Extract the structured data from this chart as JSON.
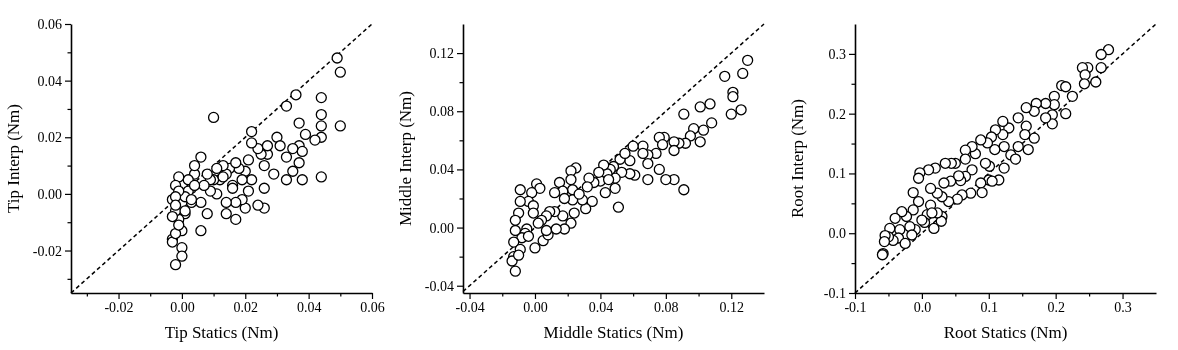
{
  "chart_data": [
    {
      "type": "scatter",
      "xlabel": "Tip Statics (Nm)",
      "ylabel": "Tip Interp (Nm)",
      "xlim": [
        -0.035,
        0.06
      ],
      "ylim": [
        -0.035,
        0.06
      ],
      "xticks": [
        {
          "value": -0.03,
          "label": null
        },
        -0.02,
        {
          "value": -0.01,
          "label": null
        },
        {
          "value": 0,
          "label": "0.00"
        },
        {
          "value": 0.01,
          "label": null
        },
        0.02,
        {
          "value": 0.03,
          "label": null
        },
        0.04,
        {
          "value": 0.05,
          "label": null
        },
        0.06
      ],
      "yticks": [
        {
          "value": -0.03,
          "label": null
        },
        -0.02,
        {
          "value": -0.01,
          "label": null
        },
        {
          "value": 0,
          "label": "0.00"
        },
        {
          "value": 0.01,
          "label": null
        },
        0.02,
        {
          "value": 0.03,
          "label": null
        },
        0.04,
        {
          "value": 0.05,
          "label": null
        },
        0.06
      ],
      "series": [
        {
          "marker": "circle",
          "color": "#000000",
          "x": [
            0.049,
            0.05,
            0.05,
            0.044,
            0.044,
            0.044,
            0.044,
            0.044,
            0.042,
            0.039,
            0.036,
            0.037,
            0.037,
            0.038,
            0.038,
            0.037,
            0.035,
            0.035,
            0.033,
            0.033,
            0.033,
            0.03,
            0.031,
            0.029,
            0.027,
            0.026,
            0.026,
            0.026,
            0.024,
            0.025,
            0.024,
            0.022,
            0.022,
            0.021,
            0.02,
            0.02,
            0.019,
            0.019,
            0.018,
            0.017,
            0.017,
            0.015,
            0.016,
            0.014,
            0.014,
            0.014,
            0.013,
            0.012,
            0.011,
            0.01,
            0.011,
            0.01,
            0.009,
            0.009,
            0.008,
            0.008,
            0.007,
            0.006,
            0.006,
            0.006,
            0.004,
            0.004,
            0.003,
            0.003,
            0.002,
            0.002,
            0.001,
            0,
            0,
            0,
            0,
            -0.002,
            -0.001,
            -0.001,
            -0.002,
            -0.002,
            -0.003,
            -0.003,
            -0.003,
            -0.003,
            -0.002,
            0.001,
            0.001,
            0.003,
            0.004,
            -0.001,
            -0.002,
            -0.002,
            -0.001,
            0.017,
            0.021,
            0.016,
            0.013,
            0.022,
            0.027
          ],
          "values": [
            0.048,
            0.043,
            0.024,
            0.034,
            0.028,
            0.024,
            0.02,
            0.006,
            0.019,
            0.021,
            0.035,
            0.025,
            0.017,
            0.015,
            0.005,
            0.011,
            0.016,
            0.008,
            0.031,
            0.013,
            0.005,
            0.02,
            0.017,
            0.007,
            0.014,
            0.01,
            0.002,
            -0.005,
            -0.004,
            0.014,
            0.016,
            0.022,
            0.005,
            0.012,
            0.008,
            -0.005,
            0.005,
            -0.002,
            0.009,
            -0.003,
            -0.009,
            0.009,
            0.003,
            0.007,
            -0.003,
            -0.007,
            0.01,
            0.005,
            0,
            0.027,
            0.009,
            0.005,
            0.001,
            0.005,
            0.007,
            -0.007,
            0.003,
            0.013,
            -0.013,
            -0.003,
            0.007,
            0.01,
            -0.003,
            0.002,
            0.005,
            0.001,
            -0.007,
            -0.003,
            -0.013,
            -0.019,
            -0.022,
            -0.025,
            -0.009,
            0.006,
            -0.006,
            0.003,
            -0.002,
            -0.008,
            -0.016,
            -0.017,
            -0.014,
            -0.006,
            -0.001,
            -0.002,
            0.003,
            0.001,
            -0.001,
            -0.004,
            -0.011,
            0.011,
            0.001,
            0.002,
            0.006,
            0.018,
            0.017
          ]
        },
        {
          "type": "line",
          "color": "#000000",
          "line_style": "dashed",
          "x": [
            -0.035,
            0.06
          ],
          "values": [
            -0.035,
            0.06
          ]
        }
      ]
    },
    {
      "type": "scatter",
      "xlabel": "Middle Statics (Nm)",
      "ylabel": "Middle Interp (Nm)",
      "xlim": [
        -0.044,
        0.14
      ],
      "ylim": [
        -0.045,
        0.14
      ],
      "xticks": [
        -0.04,
        {
          "value": -0.02,
          "label": null
        },
        {
          "value": 0,
          "label": "0.00"
        },
        {
          "value": 0.02,
          "label": null
        },
        0.04,
        {
          "value": 0.06,
          "label": null
        },
        0.08,
        {
          "value": 0.1,
          "label": null
        },
        0.12
      ],
      "yticks": [
        -0.04,
        {
          "value": -0.02,
          "label": null
        },
        {
          "value": 0,
          "label": "0.00"
        },
        {
          "value": 0.02,
          "label": null
        },
        0.04,
        {
          "value": 0.06,
          "label": null
        },
        0.08,
        {
          "value": 0.1,
          "label": null
        },
        0.12
      ],
      "series": [
        {
          "marker": "circle",
          "color": "#000000",
          "x": [
            0.13,
            0.127,
            0.116,
            0.121,
            0.121,
            0.12,
            0.126,
            0.107,
            0.101,
            0.108,
            0.103,
            0.101,
            0.097,
            0.095,
            0.092,
            0.091,
            0.091,
            0.088,
            0.085,
            0.085,
            0.085,
            0.08,
            0.079,
            0.076,
            0.078,
            0.074,
            0.076,
            0.069,
            0.069,
            0.069,
            0.066,
            0.066,
            0.061,
            0.06,
            0.058,
            0.058,
            0.053,
            0.052,
            0.051,
            0.049,
            0.049,
            0.048,
            0.046,
            0.044,
            0.042,
            0.043,
            0.04,
            0.039,
            0.036,
            0.035,
            0.033,
            0.032,
            0.031,
            0.029,
            0.025,
            0.022,
            0.022,
            0.023,
            0.023,
            0.024,
            0.022,
            0.015,
            0.017,
            0.018,
            0.017,
            0.018,
            0.012,
            0.012,
            0.009,
            0.007,
            0.004,
            0.002,
            0.001,
            0.003,
            -0.002,
            -0.004,
            -0.001,
            -0.001,
            -0.005,
            -0.006,
            -0.008,
            -0.009,
            -0.009,
            -0.01,
            -0.012,
            -0.012,
            -0.013,
            -0.009,
            -0.013,
            -0.014,
            -0.012,
            0,
            -0.004,
            0.005,
            0.008,
            0.007,
            -0.01,
            0.013,
            0.027,
            0.045,
            0.055
          ],
          "values": [
            0.115,
            0.106,
            0.104,
            0.093,
            0.09,
            0.078,
            0.081,
            0.085,
            0.083,
            0.072,
            0.067,
            0.059,
            0.068,
            0.063,
            0.058,
            0.078,
            0.026,
            0.058,
            0.059,
            0.053,
            0.033,
            0.033,
            0.062,
            0.062,
            0.057,
            0.051,
            0.04,
            0.05,
            0.044,
            0.033,
            0.056,
            0.051,
            0.036,
            0.056,
            0.046,
            0.037,
            0.038,
            0.047,
            0.014,
            0.027,
            0.034,
            0.042,
            0.04,
            0.037,
            0.043,
            0.024,
            0.032,
            0.038,
            0.031,
            0.018,
            0.034,
            0.028,
            0.013,
            0.019,
            0.041,
            0.039,
            0.033,
            0.026,
            0.019,
            0.01,
            0.003,
            0.031,
            0.025,
            0.02,
            0.008,
            -0.001,
            0.024,
            0.011,
            0.011,
            0.008,
            0.005,
            0.003,
            0.03,
            0.027,
            0.024,
            0.018,
            0.015,
            0.01,
            -0.001,
            -0.004,
            -0.007,
            0.026,
            0.018,
            0.01,
            0.005,
            -0.002,
            -0.01,
            -0.015,
            -0.02,
            -0.023,
            -0.03,
            -0.014,
            -0.006,
            -0.009,
            -0.005,
            -0.002,
            -0.019,
            -0.001,
            0.023,
            0.033,
            0.051
          ]
        },
        {
          "type": "line",
          "color": "#000000",
          "line_style": "dashed",
          "x": [
            -0.044,
            0.14
          ],
          "values": [
            -0.044,
            0.14
          ]
        }
      ]
    },
    {
      "type": "scatter",
      "xlabel": "Root Statics (Nm)",
      "ylabel": "Root Interp (Nm)",
      "xlim": [
        -0.1,
        0.35
      ],
      "ylim": [
        -0.1,
        0.35
      ],
      "xticks": [
        -0.1,
        {
          "value": -0.05,
          "label": null
        },
        {
          "value": 0,
          "label": "0.0"
        },
        {
          "value": 0.05,
          "label": null
        },
        0.1,
        {
          "value": 0.15,
          "label": null
        },
        0.2,
        {
          "value": 0.25,
          "label": null
        },
        0.3
      ],
      "yticks": [
        -0.1,
        {
          "value": -0.05,
          "label": null
        },
        {
          "value": 0,
          "label": "0.0"
        },
        {
          "value": 0.05,
          "label": null
        },
        0.1,
        {
          "value": 0.15,
          "label": null
        },
        0.2,
        {
          "value": 0.25,
          "label": null
        },
        0.3
      ],
      "series": [
        {
          "marker": "circle",
          "color": "#000000",
          "x": [
            0.279,
            0.268,
            0.268,
            0.26,
            0.248,
            0.24,
            0.244,
            0.243,
            0.225,
            0.209,
            0.215,
            0.215,
            0.198,
            0.198,
            0.195,
            0.195,
            0.185,
            0.185,
            0.171,
            0.168,
            0.168,
            0.156,
            0.156,
            0.154,
            0.159,
            0.144,
            0.144,
            0.13,
            0.133,
            0.121,
            0.121,
            0.123,
            0.123,
            0.115,
            0.11,
            0.109,
            0.104,
            0.098,
            0.101,
            0.1,
            0.095,
            0.088,
            0.088,
            0.09,
            0.08,
            0.075,
            0.075,
            0.073,
            0.065,
            0.065,
            0.065,
            0.06,
            0.058,
            0.053,
            0.05,
            0.044,
            0.043,
            0.04,
            0.035,
            0.033,
            0.03,
            0.03,
            0.029,
            0.02,
            0.023,
            0.023,
            0.018,
            0.01,
            0.013,
            0.013,
            0.008,
            0.004,
            -0.003,
            -0.005,
            -0.005,
            -0.013,
            -0.013,
            -0.01,
            -0.018,
            -0.023,
            -0.03,
            -0.033,
            -0.035,
            -0.04,
            -0.043,
            -0.048,
            -0.05,
            -0.055,
            -0.056,
            -0.058,
            -0.059,
            0,
            0.015,
            -0.025,
            -0.015,
            0.055,
            0.14,
            0.105
          ],
          "values": [
            0.307,
            0.299,
            0.277,
            0.253,
            0.277,
            0.277,
            0.265,
            0.25,
            0.229,
            0.247,
            0.245,
            0.2,
            0.229,
            0.215,
            0.198,
            0.183,
            0.193,
            0.217,
            0.217,
            0.204,
            0.159,
            0.21,
            0.179,
            0.165,
            0.14,
            0.193,
            0.145,
            0.176,
            0.131,
            0.187,
            0.165,
            0.145,
            0.109,
            0.089,
            0.173,
            0.14,
            0.161,
            0.151,
            0.112,
            0.089,
            0.117,
            0.156,
            0.084,
            0.068,
            0.133,
            0.145,
            0.106,
            0.067,
            0.139,
            0.124,
            0.095,
            0.064,
            0.088,
            0.057,
            0.117,
            0.117,
            0.087,
            0.053,
            0.117,
            0.084,
            0.061,
            0.028,
            0.02,
            0.109,
            0.067,
            0.034,
            0.008,
            0.106,
            0.075,
            0.047,
            0.031,
            0.018,
            0.101,
            0.092,
            0.053,
            0.068,
            0.039,
            0.006,
            0.011,
            0.028,
            0.036,
            0.006,
            -0.008,
            0.025,
            -0.012,
            0.008,
            -0.006,
            -0.004,
            -0.014,
            -0.034,
            -0.036,
            0.022,
            0.034,
            -0.017,
            -0.003,
            0.096,
            0.124,
            0.087
          ]
        },
        {
          "type": "line",
          "color": "#000000",
          "line_style": "dashed",
          "x": [
            -0.1,
            0.35
          ],
          "values": [
            -0.1,
            0.35
          ]
        }
      ]
    }
  ]
}
